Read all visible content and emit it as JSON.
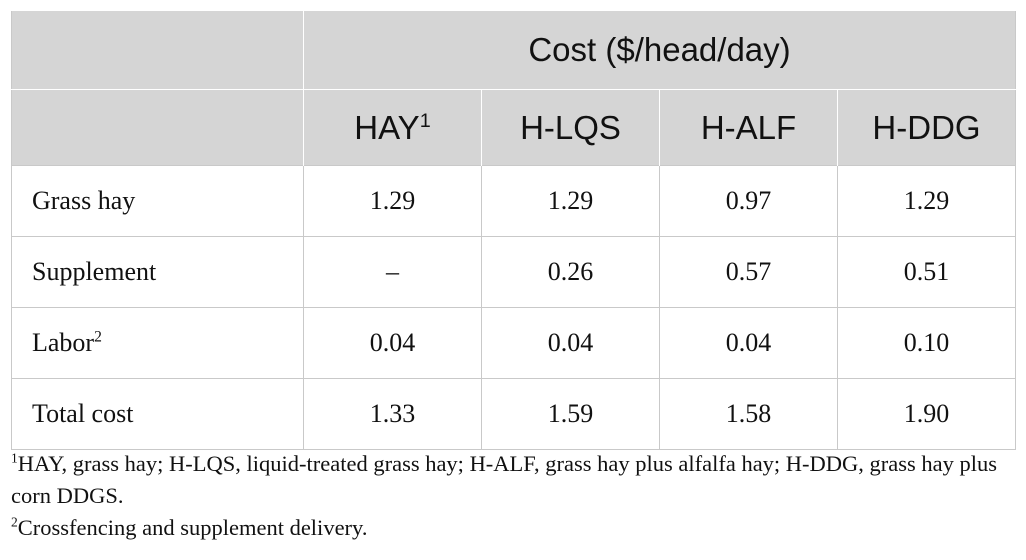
{
  "table": {
    "super_header": "Cost ($/head/day)",
    "columns": [
      {
        "label": "HAY",
        "sup": "1"
      },
      {
        "label": "H-LQS",
        "sup": ""
      },
      {
        "label": "H-ALF",
        "sup": ""
      },
      {
        "label": "H-DDG",
        "sup": ""
      }
    ],
    "rows": [
      {
        "label": "Grass hay",
        "sup": "",
        "values": [
          "1.29",
          "1.29",
          "0.97",
          "1.29"
        ]
      },
      {
        "label": "Supplement",
        "sup": "",
        "values": [
          "–",
          "0.26",
          "0.57",
          "0.51"
        ]
      },
      {
        "label": "Labor",
        "sup": "2",
        "values": [
          "0.04",
          "0.04",
          "0.04",
          "0.10"
        ]
      },
      {
        "label": "Total cost",
        "sup": "",
        "values": [
          "1.33",
          "1.59",
          "1.58",
          "1.90"
        ]
      }
    ]
  },
  "footnotes": [
    {
      "mark": "1",
      "text": "HAY, grass hay; H-LQS, liquid-treated grass hay; H-ALF, grass hay plus alfalfa hay; H-DDG, grass hay plus corn DDGS."
    },
    {
      "mark": "2",
      "text": "Crossfencing and supplement delivery."
    }
  ]
}
